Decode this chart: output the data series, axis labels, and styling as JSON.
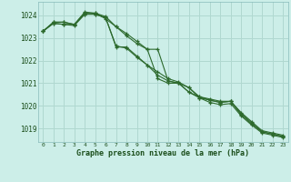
{
  "bg_color": "#cceee8",
  "grid_color": "#b0d8d0",
  "line_color": "#2d6a2d",
  "marker_color": "#2d6a2d",
  "xlabel": "Graphe pression niveau de la mer (hPa)",
  "xlabel_color": "#1a4d1a",
  "ylabel_color": "#1a4d1a",
  "xlim": [
    -0.5,
    23.5
  ],
  "ylim": [
    1018.4,
    1024.6
  ],
  "yticks": [
    1019,
    1020,
    1021,
    1022,
    1023,
    1024
  ],
  "xticks": [
    0,
    1,
    2,
    3,
    4,
    5,
    6,
    7,
    8,
    9,
    10,
    11,
    12,
    13,
    14,
    15,
    16,
    17,
    18,
    19,
    20,
    21,
    22,
    23
  ],
  "series": [
    [
      1023.3,
      1023.65,
      1023.6,
      1023.55,
      1024.05,
      1024.1,
      1023.85,
      1023.5,
      1023.1,
      1022.75,
      1022.5,
      1022.5,
      1021.1,
      1021.0,
      1020.8,
      1020.35,
      1020.25,
      1020.15,
      1020.2,
      1019.65,
      1019.25,
      1018.85,
      1018.75,
      1018.65
    ],
    [
      1023.3,
      1023.65,
      1023.6,
      1023.6,
      1024.05,
      1024.05,
      1023.9,
      1022.6,
      1022.6,
      1022.2,
      1021.8,
      1021.5,
      1021.2,
      1021.05,
      1020.8,
      1020.4,
      1020.25,
      1020.15,
      1020.2,
      1019.6,
      1019.2,
      1018.85,
      1018.75,
      1018.65
    ],
    [
      1023.3,
      1023.7,
      1023.7,
      1023.6,
      1024.1,
      1024.05,
      1023.9,
      1022.65,
      1022.55,
      1022.15,
      1021.8,
      1021.35,
      1021.1,
      1021.0,
      1020.6,
      1020.35,
      1020.15,
      1020.05,
      1020.1,
      1019.55,
      1019.15,
      1018.8,
      1018.7,
      1018.6
    ],
    [
      1023.3,
      1023.7,
      1023.7,
      1023.6,
      1024.15,
      1024.1,
      1023.95,
      1023.5,
      1023.2,
      1022.85,
      1022.5,
      1021.2,
      1021.0,
      1021.0,
      1020.6,
      1020.4,
      1020.3,
      1020.2,
      1020.2,
      1019.7,
      1019.3,
      1018.9,
      1018.8,
      1018.7
    ]
  ]
}
